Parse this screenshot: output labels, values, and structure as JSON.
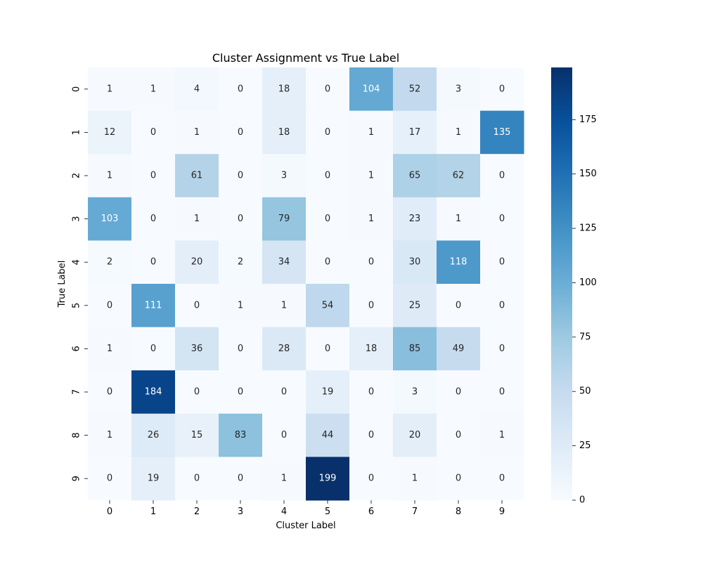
{
  "chart_data": {
    "type": "heatmap",
    "title": "Cluster Assignment vs True Label",
    "xlabel": "Cluster Label",
    "ylabel": "True Label",
    "x_categories": [
      "0",
      "1",
      "2",
      "3",
      "4",
      "5",
      "6",
      "7",
      "8",
      "9"
    ],
    "y_categories": [
      "0",
      "1",
      "2",
      "3",
      "4",
      "5",
      "6",
      "7",
      "8",
      "9"
    ],
    "values": [
      [
        1,
        1,
        4,
        0,
        18,
        0,
        104,
        52,
        3,
        0
      ],
      [
        12,
        0,
        1,
        0,
        18,
        0,
        1,
        17,
        1,
        135
      ],
      [
        1,
        0,
        61,
        0,
        3,
        0,
        1,
        65,
        62,
        0
      ],
      [
        103,
        0,
        1,
        0,
        79,
        0,
        1,
        23,
        1,
        0
      ],
      [
        2,
        0,
        20,
        2,
        34,
        0,
        0,
        30,
        118,
        0
      ],
      [
        0,
        111,
        0,
        1,
        1,
        54,
        0,
        25,
        0,
        0
      ],
      [
        1,
        0,
        36,
        0,
        28,
        0,
        18,
        85,
        49,
        0
      ],
      [
        0,
        184,
        0,
        0,
        0,
        19,
        0,
        3,
        0,
        0
      ],
      [
        1,
        26,
        15,
        83,
        0,
        44,
        0,
        20,
        0,
        1
      ],
      [
        0,
        19,
        0,
        0,
        1,
        199,
        0,
        1,
        0,
        0
      ]
    ],
    "colormap": "Blues",
    "vmin": 0,
    "vmax": 199,
    "colorbar_ticks": [
      0,
      25,
      50,
      75,
      100,
      125,
      150,
      175
    ],
    "grid": false
  }
}
